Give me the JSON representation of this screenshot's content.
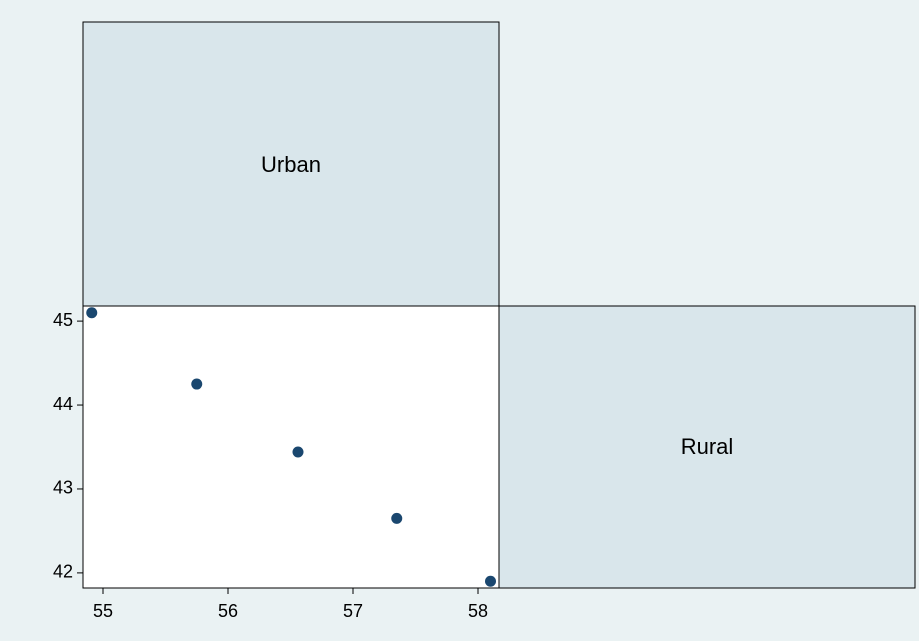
{
  "chart_data": {
    "type": "scatter",
    "variables": [
      "Urban",
      "Rural"
    ],
    "x": [
      54.91,
      55.75,
      56.56,
      57.35,
      58.1
    ],
    "y": [
      45.1,
      44.25,
      43.44,
      42.65,
      41.9
    ],
    "xlim": [
      54.84,
      58.168
    ],
    "ylim": [
      41.82,
      45.18
    ],
    "xticks": [
      55,
      56,
      57,
      58
    ],
    "yticks": [
      42,
      43,
      44,
      45
    ],
    "color": "#1a476f"
  }
}
